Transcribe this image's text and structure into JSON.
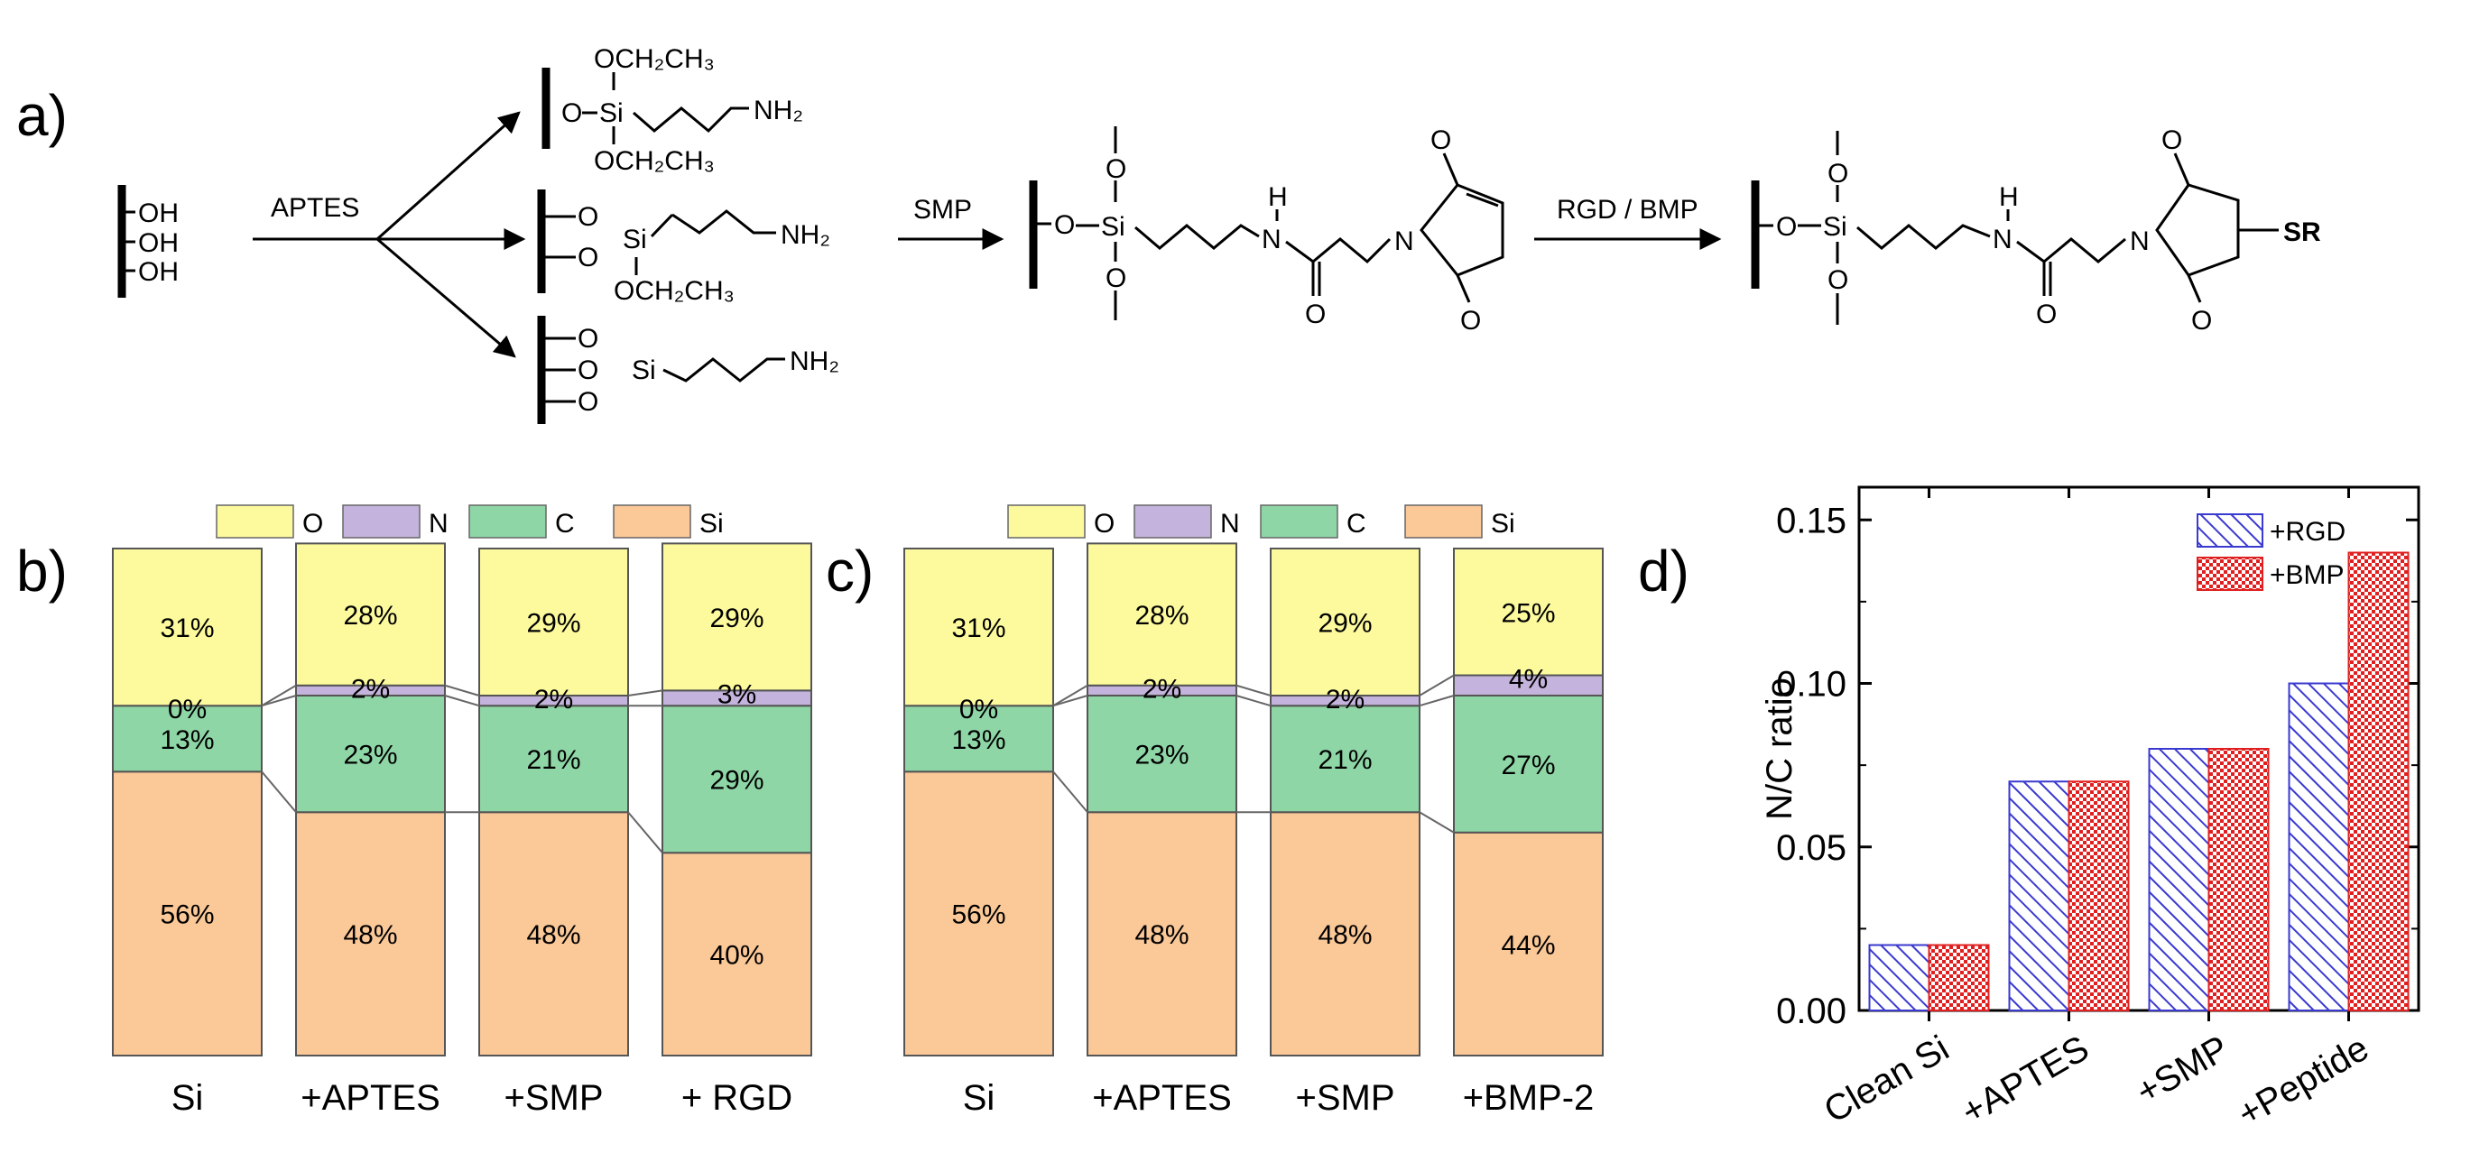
{
  "panel_labels": {
    "a": "a)",
    "b": "b)",
    "c": "c)",
    "d": "d)"
  },
  "scheme": {
    "surface_groups": [
      "OH",
      "OH",
      "OH"
    ],
    "reagent_1": "APTES",
    "reagent_2": "SMP",
    "reagent_3": "RGD / BMP",
    "product_1": {
      "o_substituent_top": "OCH₂CH₃",
      "o_substituent_bottom": "OCH₂CH₃",
      "si": "Si",
      "o": "O",
      "amine": "NH₂"
    },
    "product_2": {
      "o_substituent": "OCH₂CH₃",
      "si": "Si",
      "o": "O",
      "amine": "NH₂"
    },
    "product_3": {
      "si": "Si",
      "o": "O",
      "amine": "NH₂"
    },
    "smp_product": {
      "si": "Si",
      "o": "O",
      "h": "H",
      "n": "N"
    },
    "final_product": {
      "si": "Si",
      "o": "O",
      "h": "H",
      "n": "N",
      "sr": "SR"
    }
  },
  "chart_data": [
    {
      "panel": "b)",
      "type": "bar",
      "subtype": "stacked-100",
      "legend": [
        "O",
        "N",
        "C",
        "Si"
      ],
      "legend_position": "top",
      "categories": [
        "Si",
        "+APTES",
        "+SMP",
        "+ RGD"
      ],
      "series": [
        {
          "name": "Si",
          "color": "#fbc898",
          "values": [
            56,
            48,
            48,
            40
          ]
        },
        {
          "name": "C",
          "color": "#8fd6a7",
          "values": [
            13,
            23,
            21,
            29
          ]
        },
        {
          "name": "N",
          "color": "#c4b3dc",
          "values": [
            0,
            2,
            2,
            3
          ]
        },
        {
          "name": "O",
          "color": "#fdfa9e",
          "values": [
            31,
            28,
            29,
            29
          ]
        }
      ],
      "labels": {
        "Si": [
          "56%",
          "48%",
          "48%",
          "40%"
        ],
        "C": [
          "13%",
          "23%",
          "21%",
          "29%"
        ],
        "N": [
          "0%",
          "2%",
          "2%",
          "3%"
        ],
        "O": [
          "31%",
          "28%",
          "29%",
          "29%"
        ]
      }
    },
    {
      "panel": "c)",
      "type": "bar",
      "subtype": "stacked-100",
      "legend": [
        "O",
        "N",
        "C",
        "Si"
      ],
      "legend_position": "top",
      "categories": [
        "Si",
        "+APTES",
        "+SMP",
        "+BMP-2"
      ],
      "series": [
        {
          "name": "Si",
          "color": "#fbc898",
          "values": [
            56,
            48,
            48,
            44
          ]
        },
        {
          "name": "C",
          "color": "#8fd6a7",
          "values": [
            13,
            23,
            21,
            27
          ]
        },
        {
          "name": "N",
          "color": "#c4b3dc",
          "values": [
            0,
            2,
            2,
            4
          ]
        },
        {
          "name": "O",
          "color": "#fdfa9e",
          "values": [
            31,
            28,
            29,
            25
          ]
        }
      ],
      "labels": {
        "Si": [
          "56%",
          "48%",
          "48%",
          "44%"
        ],
        "C": [
          "13%",
          "23%",
          "21%",
          "27%"
        ],
        "N": [
          "0%",
          "2%",
          "2%",
          "4%"
        ],
        "O": [
          "31%",
          "28%",
          "29%",
          "25%"
        ]
      }
    },
    {
      "panel": "d)",
      "type": "bar",
      "subtype": "grouped",
      "ylabel": "N/C ratio",
      "ylim": [
        0,
        0.16
      ],
      "yticks": [
        "0.00",
        "0.05",
        "0.10",
        "0.15"
      ],
      "ytick_values": [
        0,
        0.05,
        0.1,
        0.15
      ],
      "categories": [
        "Clean Si",
        "+APTES",
        "+SMP",
        "+Peptide"
      ],
      "legend_position": "top-right",
      "series": [
        {
          "name": "+RGD",
          "color": "#3a3ad0",
          "pattern": "diagonal-hatch",
          "values": [
            0.02,
            0.07,
            0.08,
            0.1
          ]
        },
        {
          "name": "+BMP",
          "color": "#e02020",
          "pattern": "crosshatch",
          "values": [
            0.02,
            0.07,
            0.08,
            0.14
          ]
        }
      ]
    }
  ]
}
